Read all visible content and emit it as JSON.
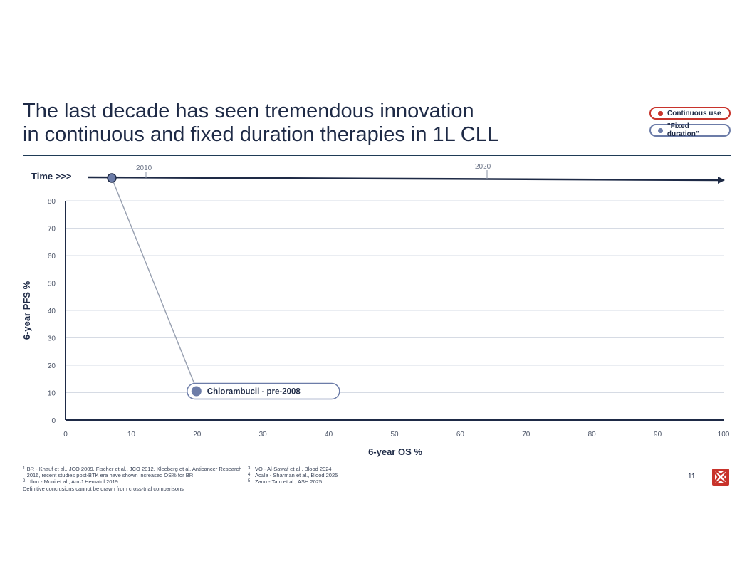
{
  "slide": {
    "title_line1": "The last decade has seen tremendous innovation",
    "title_line2": "in continuous and fixed duration therapies in 1L CLL",
    "page_number": "11"
  },
  "legend": {
    "items": [
      {
        "label": "Continuous use",
        "color": "#c8332b"
      },
      {
        "label": "\"Fixed duration\"",
        "color": "#6c7ca8"
      }
    ]
  },
  "timeline": {
    "label": "Time >>>",
    "ticks": [
      "2010",
      "2020"
    ]
  },
  "chart_data": {
    "type": "scatter",
    "xlabel": "6-year OS %",
    "ylabel": "6-year PFS %",
    "xlim": [
      0,
      100
    ],
    "ylim": [
      0,
      80
    ],
    "x_ticks": [
      0,
      10,
      20,
      30,
      40,
      50,
      60,
      70,
      80,
      90,
      100
    ],
    "y_ticks": [
      0,
      10,
      20,
      30,
      40,
      50,
      60,
      70,
      80
    ],
    "grid": true,
    "points": [
      {
        "label": "Chlorambucil - pre-2008",
        "x": 20,
        "y": 10,
        "group": "fixed"
      }
    ],
    "colors": {
      "fixed": "#6c7ca8",
      "continuous": "#c8332b"
    }
  },
  "footnotes": {
    "left": [
      {
        "n": "1",
        "text": "BR - Knauf et al., JCO 2009, Fischer et al., JCO 2012, Kleeberg et al, Anticancer Research 2016, recent studies post-BTK era have shown increased OS% for BR"
      },
      {
        "n": "2",
        "text": "Ibru - Muni et al., Am J Hematol 2019"
      }
    ],
    "right": [
      {
        "n": "3",
        "text": "VO - Al-Sawaf et al., Blood 2024"
      },
      {
        "n": "4",
        "text": "Acala - Sharman et al., Blood 2025"
      },
      {
        "n": "5",
        "text": "Zanu - Tam et al., ASH 2025"
      }
    ],
    "disclaimer": "Definitive conclusions cannot be drawn from cross-trial comparisons"
  }
}
